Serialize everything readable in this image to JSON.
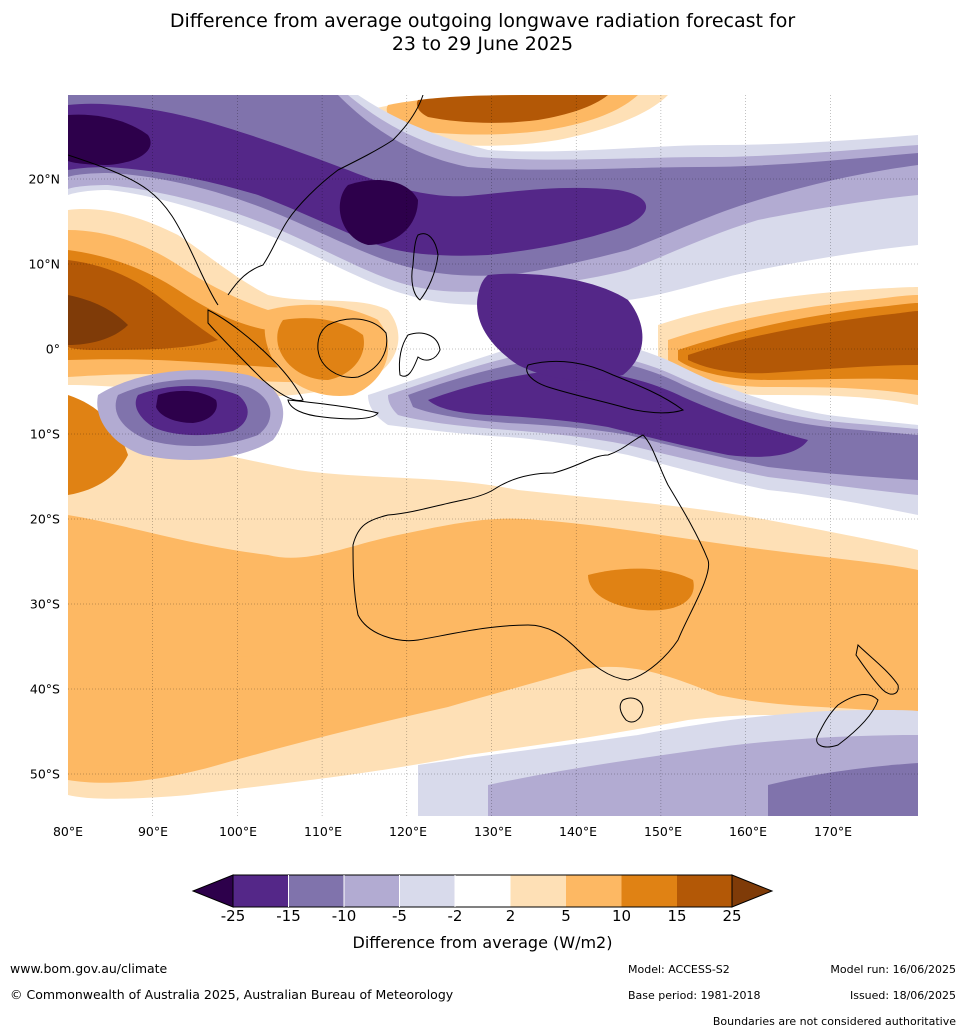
{
  "title_line1": "Difference from average outgoing longwave radiation forecast for",
  "title_line2": "23 to 29 June 2025",
  "lat_labels": [
    "20°N",
    "10°N",
    "0°",
    "10°S",
    "20°S",
    "30°S",
    "40°S",
    "50°S"
  ],
  "lon_labels": [
    "80°E",
    "90°E",
    "100°E",
    "110°E",
    "120°E",
    "130°E",
    "140°E",
    "150°E",
    "160°E",
    "170°E"
  ],
  "colorbar": {
    "ticks": [
      "-25",
      "-15",
      "-10",
      "-5",
      "-2",
      "2",
      "5",
      "10",
      "15",
      "25"
    ],
    "colors": [
      "#2d004b",
      "#542788",
      "#8073ac",
      "#b2abd2",
      "#d8daeb",
      "#ffffff",
      "#fee0b6",
      "#fdb863",
      "#e08214",
      "#b35806",
      "#7f3b08"
    ],
    "label": "Difference from average (W/m2)"
  },
  "footer": {
    "website": "www.bom.gov.au/climate",
    "copyright": "© Commonwealth of Australia 2025, Australian Bureau of Meteorology",
    "model": "Model: ACCESS-S2",
    "base_period": "Base period: 1981-2018",
    "model_run": "Model run: 16/06/2025",
    "issued": "Issued: 18/06/2025",
    "disclaimer": "Boundaries are not considered authoritative"
  }
}
